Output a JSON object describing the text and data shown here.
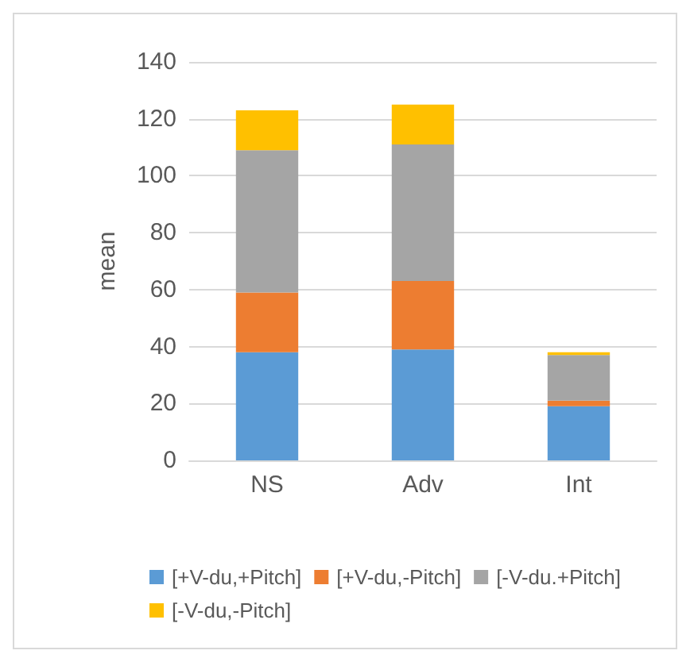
{
  "chart_data": {
    "type": "bar",
    "stacked": true,
    "ylabel": "mean",
    "categories": [
      "NS",
      "Adv",
      "Int"
    ],
    "series": [
      {
        "name": "[+V-du,+Pitch]",
        "color": "#5b9bd5",
        "values": [
          38,
          39,
          19
        ]
      },
      {
        "name": "[+V-du,-Pitch]",
        "color": "#ed7d31",
        "values": [
          21,
          24,
          2
        ]
      },
      {
        "name": "[-V-du.+Pitch]",
        "color": "#a5a5a5",
        "values": [
          50,
          48,
          16
        ]
      },
      {
        "name": "[-V-du,-Pitch]",
        "color": "#ffc000",
        "values": [
          14,
          14,
          1
        ]
      }
    ],
    "ylim": [
      0,
      140
    ],
    "yticks": [
      0,
      20,
      40,
      60,
      80,
      100,
      120,
      140
    ],
    "grid": "y",
    "legend": "bottom"
  }
}
